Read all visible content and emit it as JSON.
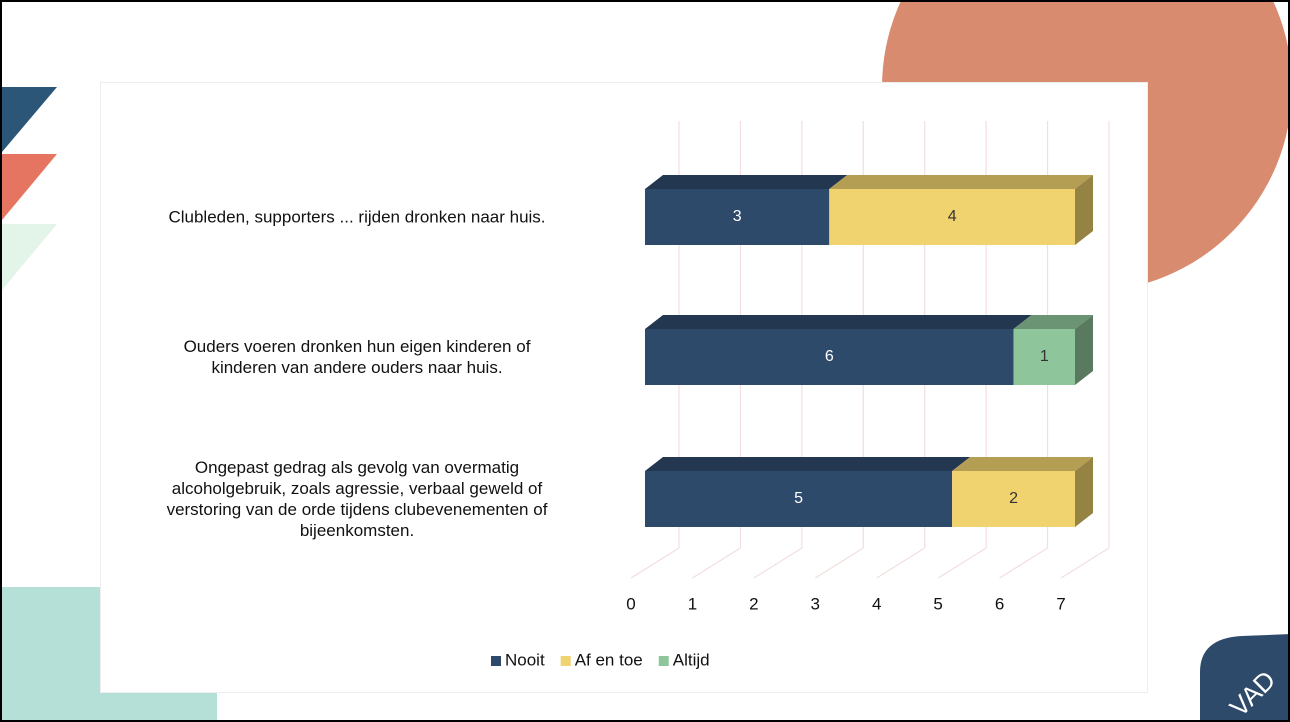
{
  "logo": "VAD",
  "chart_data": {
    "type": "bar3d_stacked_horizontal",
    "categories": [
      "Clubleden, supporters ... rijden dronken naar huis.",
      "Ouders voeren dronken hun eigen kinderen of\nkinderen van andere ouders naar huis.",
      "Ongepast gedrag als gevolg van overmatig\nalcoholgebruik, zoals agressie, verbaal geweld of\nverstoring van de orde tijdens clubevenementen of\nbijeenkomsten."
    ],
    "series": [
      {
        "name": "Nooit",
        "color": "#2e4a6b",
        "values": [
          3,
          6,
          5
        ]
      },
      {
        "name": "Af en toe",
        "color": "#f0d36e",
        "values": [
          4,
          null,
          2
        ]
      },
      {
        "name": "Altijd",
        "color": "#8fc59a",
        "values": [
          null,
          1,
          null
        ]
      }
    ],
    "xlim": [
      0,
      7
    ],
    "xticks": [
      0,
      1,
      2,
      3,
      4,
      5,
      6,
      7
    ],
    "grid": true,
    "legend": "bottom"
  }
}
